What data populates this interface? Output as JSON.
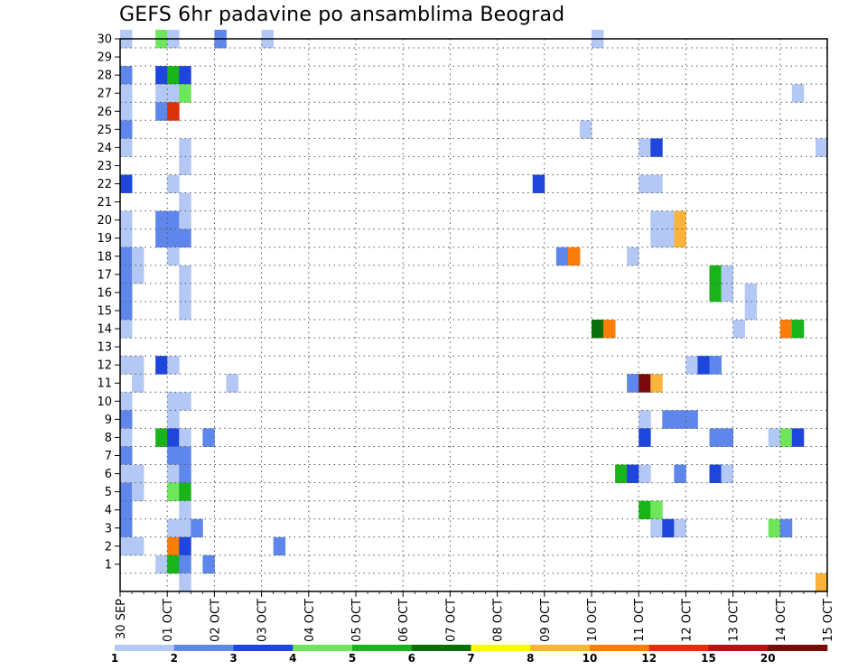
{
  "chart_data": {
    "type": "heatmap",
    "title": "GEFS 6hr padavine po ansamblima Beograd",
    "xlabel": "",
    "ylabel": "",
    "x_start": "30 SEP 00Z",
    "x_end": "15 OCT 00Z",
    "x_step_hours": 6,
    "x_ticks": [
      "30 SEP",
      "01 OCT",
      "02 OCT",
      "03 OCT",
      "04 OCT",
      "05 OCT",
      "06 OCT",
      "07 OCT",
      "08 OCT",
      "09 OCT",
      "10 OCT",
      "11 OCT",
      "12 OCT",
      "13 OCT",
      "14 OCT",
      "15 OCT"
    ],
    "y_ticks": [
      1,
      2,
      3,
      4,
      5,
      6,
      7,
      8,
      9,
      10,
      11,
      12,
      13,
      14,
      15,
      16,
      17,
      18,
      19,
      20,
      21,
      22,
      23,
      24,
      25,
      26,
      27,
      28,
      29,
      30
    ],
    "ylim": [
      0,
      30
    ],
    "grid": true,
    "colorbar": {
      "labels": [
        "1",
        "2",
        "3",
        "4",
        "5",
        "6",
        "7",
        "8",
        "10",
        "12",
        "15",
        "20"
      ],
      "colors": [
        "#b4c8f5",
        "#5f87eb",
        "#1e46dc",
        "#6ee65a",
        "#19b419",
        "#0a6e0a",
        "#fafa00",
        "#fab43c",
        "#fa7d0a",
        "#dc320a",
        "#b41414",
        "#780a0a"
      ]
    },
    "cells": [
      {
        "member": 30,
        "step": 0,
        "level": 0
      },
      {
        "member": 30,
        "step": 3,
        "level": 3
      },
      {
        "member": 30,
        "step": 4,
        "level": 0
      },
      {
        "member": 30,
        "step": 8,
        "level": 1
      },
      {
        "member": 30,
        "step": 12,
        "level": 0
      },
      {
        "member": 30,
        "step": 40,
        "level": 0
      },
      {
        "member": 28,
        "step": 0,
        "level": 1
      },
      {
        "member": 28,
        "step": 3,
        "level": 2
      },
      {
        "member": 28,
        "step": 4,
        "level": 4
      },
      {
        "member": 28,
        "step": 5,
        "level": 2
      },
      {
        "member": 27,
        "step": 0,
        "level": 0
      },
      {
        "member": 27,
        "step": 3,
        "level": 0
      },
      {
        "member": 27,
        "step": 4,
        "level": 0
      },
      {
        "member": 27,
        "step": 5,
        "level": 3
      },
      {
        "member": 27,
        "step": 57,
        "level": 0
      },
      {
        "member": 26,
        "step": 0,
        "level": 0
      },
      {
        "member": 26,
        "step": 3,
        "level": 1
      },
      {
        "member": 26,
        "step": 4,
        "level": 9
      },
      {
        "member": 25,
        "step": 0,
        "level": 1
      },
      {
        "member": 25,
        "step": 39,
        "level": 0
      },
      {
        "member": 24,
        "step": 0,
        "level": 0
      },
      {
        "member": 24,
        "step": 5,
        "level": 0
      },
      {
        "member": 24,
        "step": 44,
        "level": 0
      },
      {
        "member": 24,
        "step": 45,
        "level": 2
      },
      {
        "member": 24,
        "step": 59,
        "level": 0
      },
      {
        "member": 23,
        "step": 5,
        "level": 0
      },
      {
        "member": 22,
        "step": 0,
        "level": 2
      },
      {
        "member": 22,
        "step": 4,
        "level": 0
      },
      {
        "member": 22,
        "step": 35,
        "level": 2
      },
      {
        "member": 22,
        "step": 44,
        "level": 0
      },
      {
        "member": 22,
        "step": 45,
        "level": 0
      },
      {
        "member": 21,
        "step": 5,
        "level": 0
      },
      {
        "member": 20,
        "step": 0,
        "level": 0
      },
      {
        "member": 20,
        "step": 3,
        "level": 1
      },
      {
        "member": 20,
        "step": 4,
        "level": 1
      },
      {
        "member": 20,
        "step": 5,
        "level": 0
      },
      {
        "member": 20,
        "step": 45,
        "level": 0
      },
      {
        "member": 20,
        "step": 46,
        "level": 0
      },
      {
        "member": 20,
        "step": 47,
        "level": 7
      },
      {
        "member": 19,
        "step": 0,
        "level": 0
      },
      {
        "member": 19,
        "step": 3,
        "level": 1
      },
      {
        "member": 19,
        "step": 4,
        "level": 1
      },
      {
        "member": 19,
        "step": 5,
        "level": 1
      },
      {
        "member": 19,
        "step": 45,
        "level": 0
      },
      {
        "member": 19,
        "step": 46,
        "level": 0
      },
      {
        "member": 19,
        "step": 47,
        "level": 7
      },
      {
        "member": 18,
        "step": 0,
        "level": 1
      },
      {
        "member": 18,
        "step": 1,
        "level": 0
      },
      {
        "member": 18,
        "step": 4,
        "level": 0
      },
      {
        "member": 18,
        "step": 37,
        "level": 1
      },
      {
        "member": 18,
        "step": 38,
        "level": 8
      },
      {
        "member": 18,
        "step": 43,
        "level": 0
      },
      {
        "member": 17,
        "step": 0,
        "level": 1
      },
      {
        "member": 17,
        "step": 1,
        "level": 0
      },
      {
        "member": 17,
        "step": 5,
        "level": 0
      },
      {
        "member": 17,
        "step": 50,
        "level": 4
      },
      {
        "member": 17,
        "step": 51,
        "level": 0
      },
      {
        "member": 16,
        "step": 0,
        "level": 1
      },
      {
        "member": 16,
        "step": 5,
        "level": 0
      },
      {
        "member": 16,
        "step": 50,
        "level": 4
      },
      {
        "member": 16,
        "step": 51,
        "level": 0
      },
      {
        "member": 16,
        "step": 53,
        "level": 0
      },
      {
        "member": 15,
        "step": 0,
        "level": 1
      },
      {
        "member": 15,
        "step": 5,
        "level": 0
      },
      {
        "member": 15,
        "step": 53,
        "level": 0
      },
      {
        "member": 14,
        "step": 0,
        "level": 0
      },
      {
        "member": 14,
        "step": 40,
        "level": 5
      },
      {
        "member": 14,
        "step": 41,
        "level": 8
      },
      {
        "member": 14,
        "step": 52,
        "level": 0
      },
      {
        "member": 14,
        "step": 56,
        "level": 8
      },
      {
        "member": 14,
        "step": 57,
        "level": 4
      },
      {
        "member": 12,
        "step": 0,
        "level": 0
      },
      {
        "member": 12,
        "step": 1,
        "level": 0
      },
      {
        "member": 12,
        "step": 3,
        "level": 2
      },
      {
        "member": 12,
        "step": 4,
        "level": 0
      },
      {
        "member": 12,
        "step": 48,
        "level": 0
      },
      {
        "member": 12,
        "step": 49,
        "level": 2
      },
      {
        "member": 12,
        "step": 50,
        "level": 1
      },
      {
        "member": 11,
        "step": 1,
        "level": 0
      },
      {
        "member": 11,
        "step": 9,
        "level": 0
      },
      {
        "member": 11,
        "step": 43,
        "level": 1
      },
      {
        "member": 11,
        "step": 44,
        "level": 11
      },
      {
        "member": 11,
        "step": 45,
        "level": 7
      },
      {
        "member": 10,
        "step": 0,
        "level": 0
      },
      {
        "member": 10,
        "step": 4,
        "level": 0
      },
      {
        "member": 10,
        "step": 5,
        "level": 0
      },
      {
        "member": 9,
        "step": 0,
        "level": 1
      },
      {
        "member": 9,
        "step": 4,
        "level": 0
      },
      {
        "member": 9,
        "step": 44,
        "level": 0
      },
      {
        "member": 9,
        "step": 46,
        "level": 1
      },
      {
        "member": 9,
        "step": 47,
        "level": 1
      },
      {
        "member": 9,
        "step": 48,
        "level": 1
      },
      {
        "member": 8,
        "step": 0,
        "level": 0
      },
      {
        "member": 8,
        "step": 3,
        "level": 4
      },
      {
        "member": 8,
        "step": 4,
        "level": 2
      },
      {
        "member": 8,
        "step": 5,
        "level": 0
      },
      {
        "member": 8,
        "step": 7,
        "level": 1
      },
      {
        "member": 8,
        "step": 44,
        "level": 2
      },
      {
        "member": 8,
        "step": 50,
        "level": 1
      },
      {
        "member": 8,
        "step": 51,
        "level": 1
      },
      {
        "member": 8,
        "step": 55,
        "level": 0
      },
      {
        "member": 8,
        "step": 56,
        "level": 3
      },
      {
        "member": 8,
        "step": 57,
        "level": 2
      },
      {
        "member": 7,
        "step": 0,
        "level": 1
      },
      {
        "member": 7,
        "step": 4,
        "level": 1
      },
      {
        "member": 7,
        "step": 5,
        "level": 1
      },
      {
        "member": 6,
        "step": 0,
        "level": 0
      },
      {
        "member": 6,
        "step": 1,
        "level": 0
      },
      {
        "member": 6,
        "step": 4,
        "level": 0
      },
      {
        "member": 6,
        "step": 5,
        "level": 1
      },
      {
        "member": 6,
        "step": 42,
        "level": 4
      },
      {
        "member": 6,
        "step": 43,
        "level": 2
      },
      {
        "member": 6,
        "step": 44,
        "level": 0
      },
      {
        "member": 6,
        "step": 47,
        "level": 1
      },
      {
        "member": 6,
        "step": 50,
        "level": 2
      },
      {
        "member": 6,
        "step": 51,
        "level": 0
      },
      {
        "member": 5,
        "step": 0,
        "level": 1
      },
      {
        "member": 5,
        "step": 1,
        "level": 0
      },
      {
        "member": 5,
        "step": 4,
        "level": 3
      },
      {
        "member": 5,
        "step": 5,
        "level": 4
      },
      {
        "member": 4,
        "step": 0,
        "level": 1
      },
      {
        "member": 4,
        "step": 5,
        "level": 0
      },
      {
        "member": 4,
        "step": 44,
        "level": 4
      },
      {
        "member": 4,
        "step": 45,
        "level": 3
      },
      {
        "member": 3,
        "step": 0,
        "level": 1
      },
      {
        "member": 3,
        "step": 4,
        "level": 0
      },
      {
        "member": 3,
        "step": 5,
        "level": 0
      },
      {
        "member": 3,
        "step": 6,
        "level": 1
      },
      {
        "member": 3,
        "step": 45,
        "level": 0
      },
      {
        "member": 3,
        "step": 46,
        "level": 2
      },
      {
        "member": 3,
        "step": 47,
        "level": 0
      },
      {
        "member": 3,
        "step": 55,
        "level": 3
      },
      {
        "member": 3,
        "step": 56,
        "level": 1
      },
      {
        "member": 2,
        "step": 0,
        "level": 0
      },
      {
        "member": 2,
        "step": 1,
        "level": 0
      },
      {
        "member": 2,
        "step": 4,
        "level": 8
      },
      {
        "member": 2,
        "step": 5,
        "level": 2
      },
      {
        "member": 2,
        "step": 13,
        "level": 1
      },
      {
        "member": 1,
        "step": 3,
        "level": 0
      },
      {
        "member": 1,
        "step": 4,
        "level": 4
      },
      {
        "member": 1,
        "step": 5,
        "level": 1
      },
      {
        "member": 1,
        "step": 7,
        "level": 1
      },
      {
        "member": 0,
        "step": 5,
        "level": 0
      },
      {
        "member": 0,
        "step": 59,
        "level": 7
      }
    ]
  }
}
